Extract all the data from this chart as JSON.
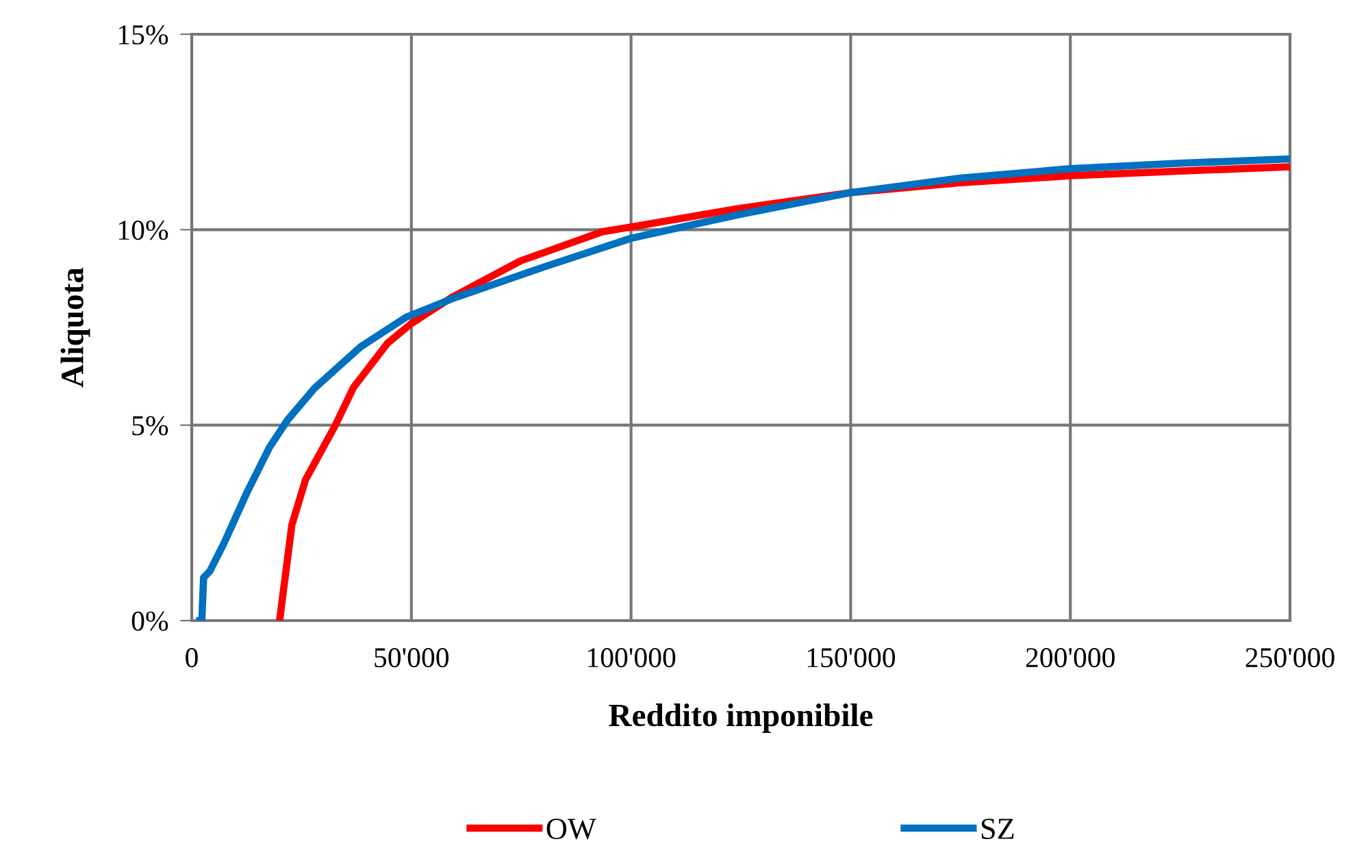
{
  "chart_data": {
    "type": "line",
    "xlabel": "Reddito imponibile",
    "ylabel": "Aliquota",
    "xlim": [
      0,
      250000
    ],
    "ylim": [
      0,
      15
    ],
    "xticks": [
      0,
      {
        "value": 50000,
        "label": "50'000"
      },
      {
        "value": 100000,
        "label": "100'000"
      },
      {
        "value": 150000,
        "label": "150'000"
      },
      {
        "value": 200000,
        "label": "200'000"
      },
      {
        "value": 250000,
        "label": "250'000"
      }
    ],
    "yticks": [
      {
        "value": 0,
        "label": "0%"
      },
      {
        "value": 5,
        "label": "5%"
      },
      {
        "value": 10,
        "label": "10%"
      },
      {
        "value": 15,
        "label": "15%"
      }
    ],
    "grid": true,
    "legend": "bottom",
    "marker": "none",
    "line_style": "solid",
    "series": [
      {
        "name": "OW",
        "color": "#ff0000",
        "x": [
          20000,
          22800,
          25900,
          32700,
          36800,
          44600,
          50000,
          59200,
          74800,
          93500,
          100000,
          125000,
          150000,
          175000,
          200000,
          225000,
          250000
        ],
        "values": [
          0,
          2.45,
          3.6,
          5.0,
          5.96,
          7.1,
          7.6,
          8.27,
          9.2,
          9.95,
          10.07,
          10.55,
          10.95,
          11.2,
          11.38,
          11.5,
          11.61
        ]
      },
      {
        "name": "SZ",
        "color": "#0070c0",
        "x": [
          1000,
          2300,
          2700,
          4100,
          7300,
          12500,
          17700,
          21800,
          28000,
          38400,
          48800,
          59200,
          80000,
          100000,
          124700,
          150000,
          175000,
          200000,
          225000,
          250000
        ],
        "values": [
          0,
          0,
          1.1,
          1.26,
          1.97,
          3.26,
          4.43,
          5.13,
          5.95,
          7.0,
          7.76,
          8.23,
          9.04,
          9.78,
          10.39,
          10.95,
          11.32,
          11.56,
          11.7,
          11.81
        ]
      }
    ]
  }
}
